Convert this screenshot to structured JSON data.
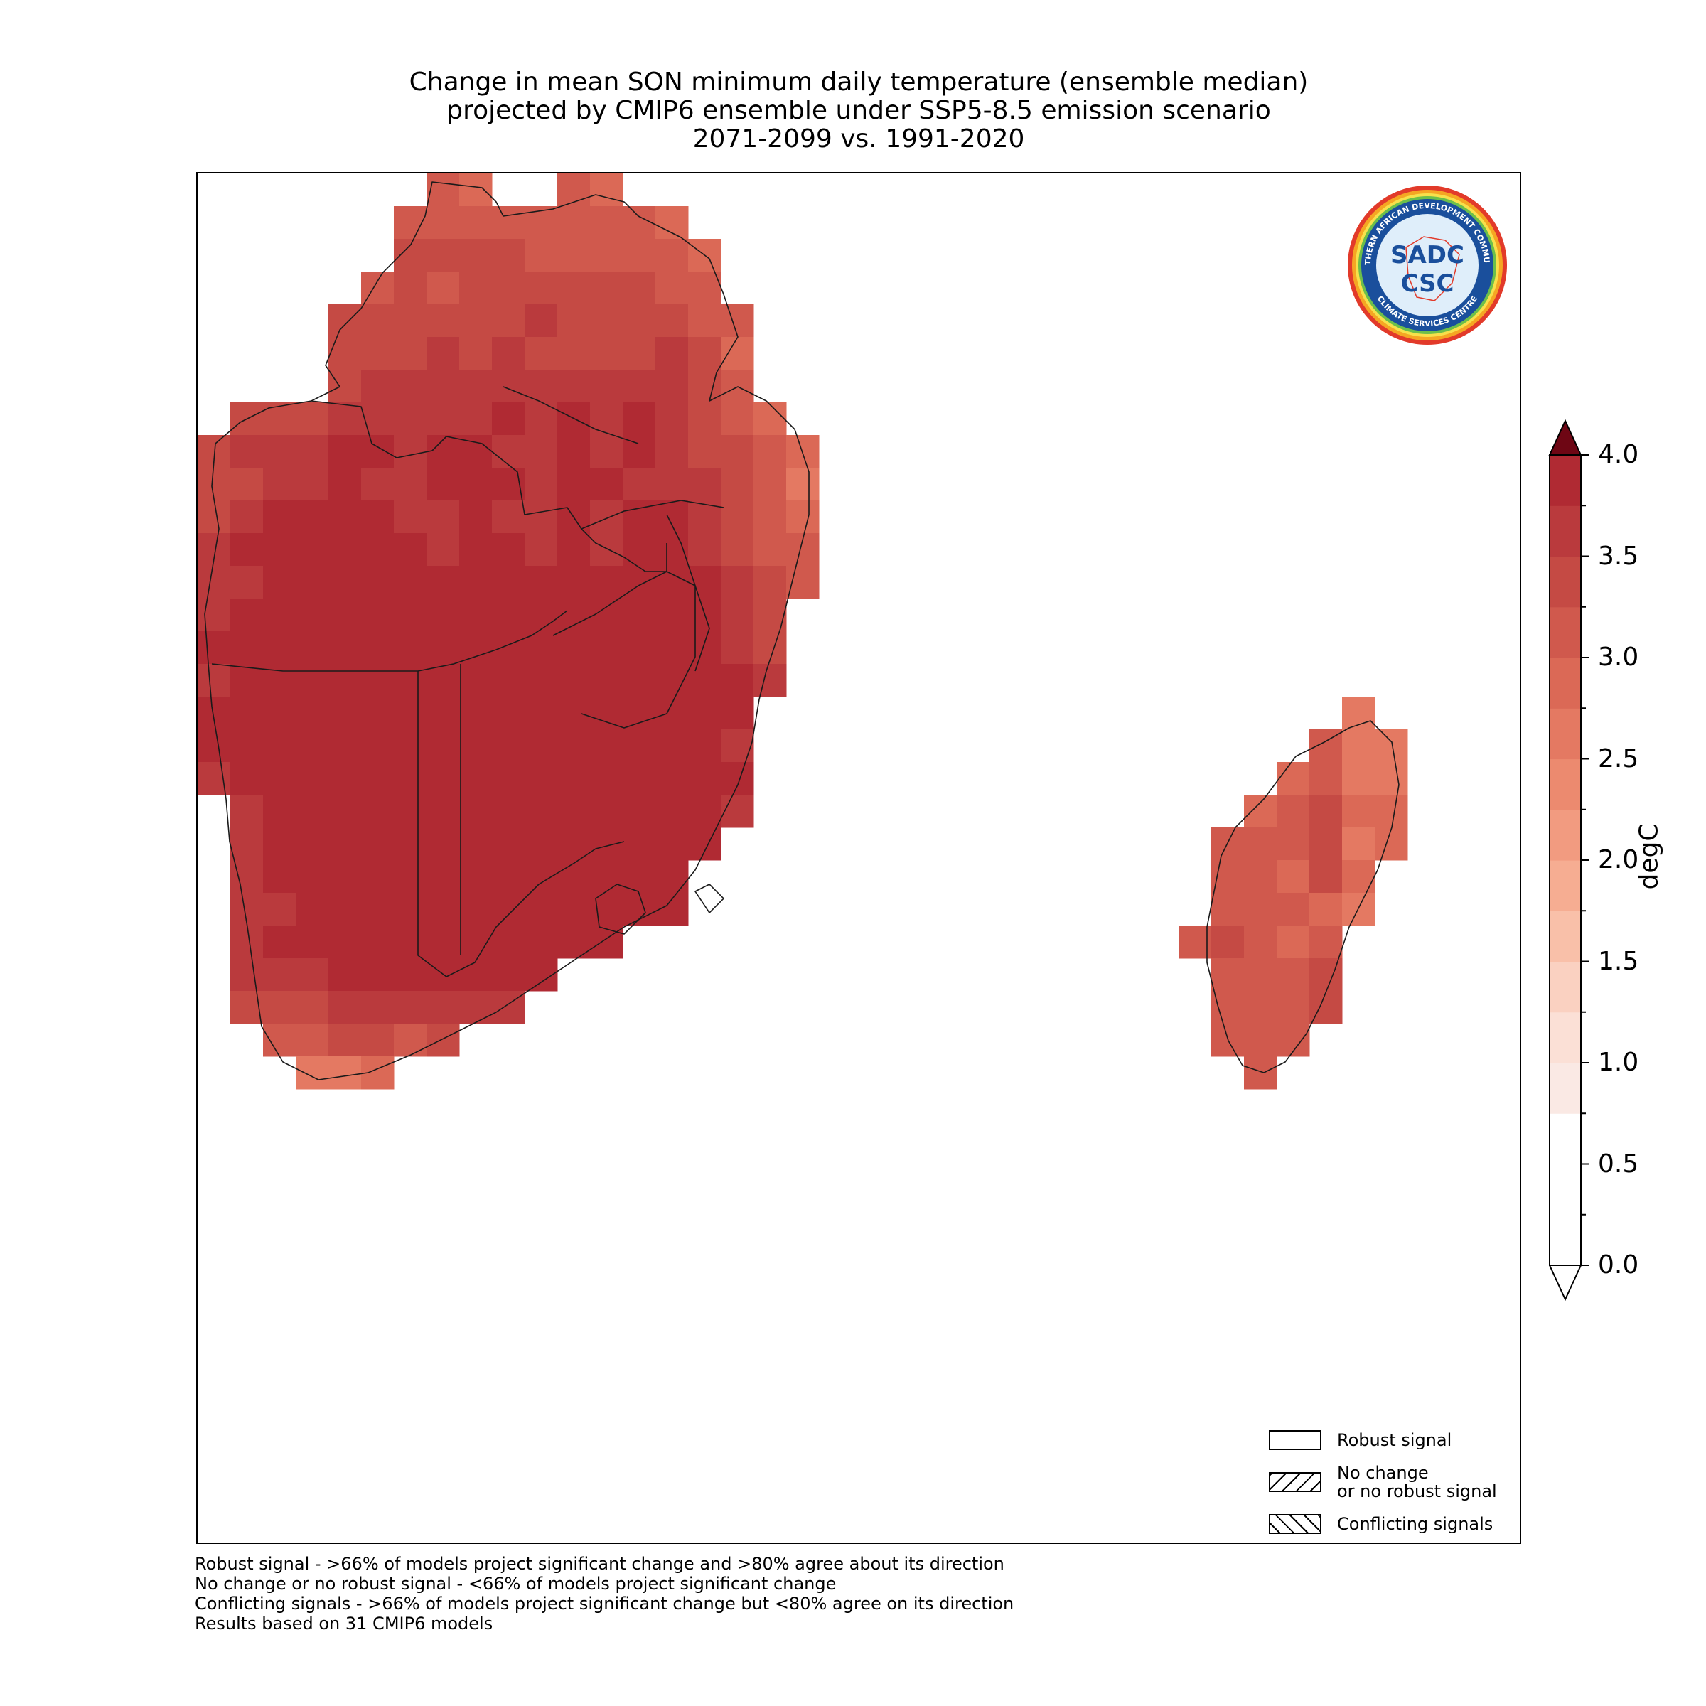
{
  "title": {
    "line1": "Change in mean SON minimum daily temperature (ensemble median)",
    "line2": "projected by CMIP6 ensemble under SSP5-8.5 emission scenario",
    "line3": "2071-2099 vs. 1991-2020"
  },
  "logo": {
    "top_text": "SOUTHERN AFRICAN DEVELOPMENT COMMUNITY",
    "bottom_text": "CLIMATE SERVICES CENTRE",
    "acronym": "SADC",
    "sub_acronym": "CSC",
    "ring_color": "#e8a020",
    "inner_color": "#1a4f9c"
  },
  "legend": {
    "robust_label": "Robust signal",
    "no_change_label_1": "No change",
    "no_change_label_2": "or no robust signal",
    "conflicting_label": "Conflicting signals"
  },
  "colorbar": {
    "label": "degC",
    "ticks": [
      "0.0",
      "0.5",
      "1.0",
      "1.5",
      "2.0",
      "2.5",
      "3.0",
      "3.5",
      "4.0"
    ],
    "min": 0.0,
    "max": 4.0,
    "step": 0.25,
    "colors": [
      "#ffffff",
      "#fae9e4",
      "#fbe0d6",
      "#fad1c1",
      "#f9c0a9",
      "#f6ad92",
      "#f29b80",
      "#ec8a6f",
      "#e47962",
      "#db6956",
      "#d0594d",
      "#c54a44",
      "#ba3a3d",
      "#b02a33"
    ],
    "extend": "both",
    "over_color": "#6e0614"
  },
  "map": {
    "variable": "SON minimum daily temperature change",
    "units": "degC",
    "region": "Southern Africa (SADC) incl. Madagascar",
    "dominant_value_range": [
      2.5,
      4.0
    ]
  },
  "notes": {
    "line1": "Robust signal - >66% of models project significant change and >80% agree about its direction",
    "line2": "No change or no robust signal - <66% of models project significant change",
    "line3": "Conflicting signals - >66% of models project significant change but <80% agree on its direction",
    "line4": "Results based on 31 CMIP6 models"
  }
}
